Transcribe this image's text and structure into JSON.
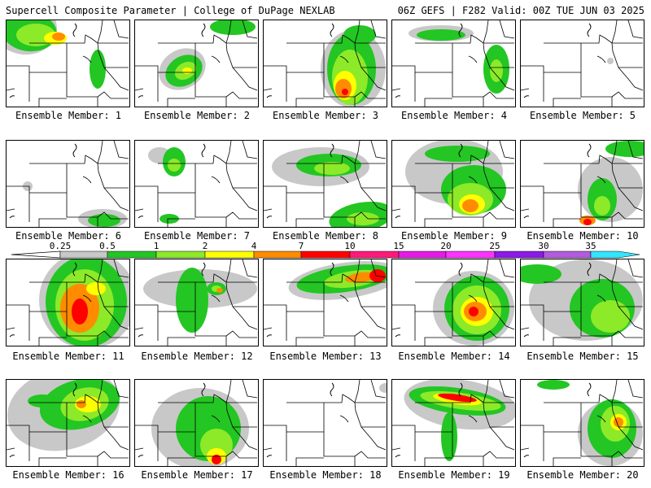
{
  "header": {
    "left": "Supercell Composite Parameter | College of DuPage NEXLAB",
    "right": "06Z GEFS | F282 Valid: 00Z TUE JUN 03 2025"
  },
  "panels": [
    {
      "label": "Ensemble Member: 1"
    },
    {
      "label": "Ensemble Member: 2"
    },
    {
      "label": "Ensemble Member: 3"
    },
    {
      "label": "Ensemble Member: 4"
    },
    {
      "label": "Ensemble Member: 5"
    },
    {
      "label": "Ensemble Member: 6"
    },
    {
      "label": "Ensemble Member: 7"
    },
    {
      "label": "Ensemble Member: 8"
    },
    {
      "label": "Ensemble Member: 9"
    },
    {
      "label": "Ensemble Member: 10"
    },
    {
      "label": "Ensemble Member: 11"
    },
    {
      "label": "Ensemble Member: 12"
    },
    {
      "label": "Ensemble Member: 13"
    },
    {
      "label": "Ensemble Member: 14"
    },
    {
      "label": "Ensemble Member: 15"
    },
    {
      "label": "Ensemble Member: 16"
    },
    {
      "label": "Ensemble Member: 17"
    },
    {
      "label": "Ensemble Member: 18"
    },
    {
      "label": "Ensemble Member: 19"
    },
    {
      "label": "Ensemble Member: 20"
    }
  ],
  "legend": {
    "levels": [
      "0.25",
      "0.5",
      "1",
      "2",
      "4",
      "7",
      "10",
      "15",
      "20",
      "25",
      "30",
      "35"
    ],
    "colors": [
      "#c8c8c8",
      "#23c623",
      "#8cea28",
      "#ffff00",
      "#ff8c00",
      "#ff0000",
      "#ff1a7a",
      "#e61ae6",
      "#ff33ff",
      "#8c1ae6",
      "#b45adc",
      "#33e6ff"
    ]
  }
}
